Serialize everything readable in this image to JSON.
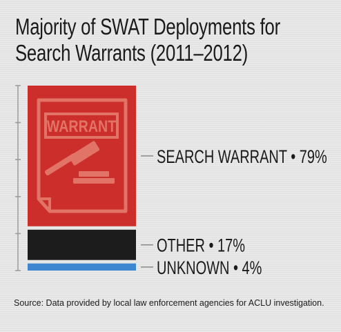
{
  "title": {
    "line1": "Majority of SWAT Deployments for",
    "line2": "Search Warrants (2011–2012)"
  },
  "chart_data": {
    "type": "bar",
    "stacked": true,
    "orientation": "vertical",
    "categories": [
      "SEARCH WARRANT",
      "OTHER",
      "UNKNOWN"
    ],
    "values": [
      79,
      17,
      4
    ],
    "unit": "%",
    "labels": [
      "SEARCH WARRANT • 79%",
      "OTHER • 17%",
      "UNKNOWN • 4%"
    ],
    "colors": [
      "#cc2e2b",
      "#1c1c1c",
      "#3e86d0"
    ],
    "total": 100,
    "icon": "warrant-gavel-icon",
    "icon_text": "WARRANT"
  },
  "source": "Source: Data provided by local law enforcement agencies for ACLU investigation."
}
